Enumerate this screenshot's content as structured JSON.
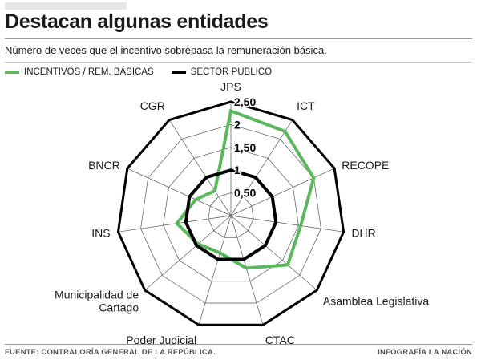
{
  "header": {
    "title": "Destacan algunas entidades",
    "subtitle": "Número de veces que el incentivo sobrepasa la remuneración básica."
  },
  "footer": {
    "source": "FUENTE: CONTRALORÍA GENERAL DE LA REPÚBLICA.",
    "credit": "INFOGRAFÍA LA NACIÓN"
  },
  "chart_data": {
    "type": "radar",
    "categories": [
      "JPS",
      "ICT",
      "RECOPE",
      "DHR",
      "Asamblea Legislativa",
      "CTAC",
      "Poder Judicial",
      "Municipalidad de Cartago",
      "INS",
      "BNCR",
      "CGR"
    ],
    "category_lines": [
      [
        "JPS"
      ],
      [
        "ICT"
      ],
      [
        "RECOPE"
      ],
      [
        "DHR"
      ],
      [
        "Asamblea Legislativa"
      ],
      [
        "CTAC"
      ],
      [
        "Poder Judicial"
      ],
      [
        "Municipalidad de",
        "Cartago"
      ],
      [
        "INS"
      ],
      [
        "BNCR"
      ],
      [
        "CGR"
      ]
    ],
    "series": [
      {
        "name": "INCENTIVOS / REM. BÁSICAS",
        "color": "#5cb85c",
        "values": [
          2.3,
          2.2,
          2.0,
          1.55,
          1.65,
          1.2,
          0.85,
          0.95,
          1.2,
          0.85,
          0.65
        ]
      },
      {
        "name": "SECTOR PÚBLICO",
        "color": "#000000",
        "values": [
          1.0,
          1.0,
          1.0,
          1.0,
          1.0,
          1.0,
          1.0,
          1.0,
          1.0,
          1.0,
          1.0
        ]
      }
    ],
    "rlim": [
      0,
      2.5
    ],
    "tick_values": [
      0.5,
      1,
      1.5,
      2,
      2.5
    ],
    "tick_labels": [
      "0,50",
      "1",
      "1,50",
      "2",
      "2,50"
    ],
    "grid_steps": 5,
    "grid": true,
    "legend_position": "top-left"
  }
}
